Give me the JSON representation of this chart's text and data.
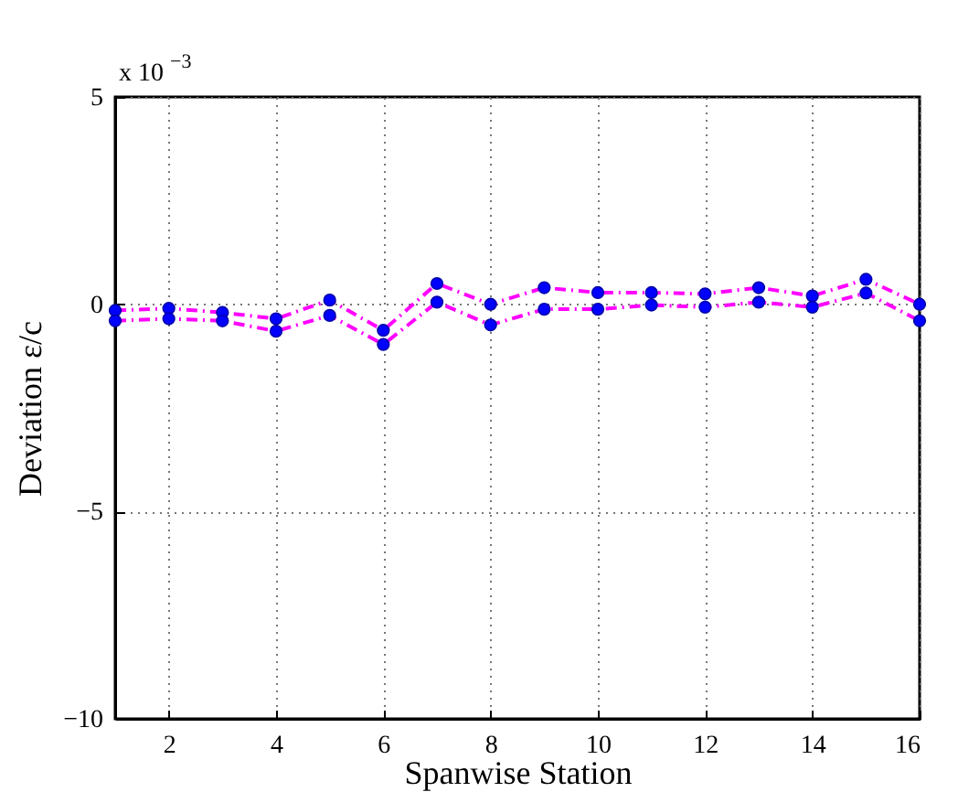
{
  "chart_data": {
    "type": "line",
    "xlabel": "Spanwise Station",
    "ylabel": "Deviation ε/c",
    "annotations": [
      "x 10$^{−3}$"
    ],
    "x": [
      1,
      2,
      3,
      4,
      5,
      6,
      7,
      8,
      9,
      10,
      11,
      12,
      13,
      14,
      15,
      16
    ],
    "series": [
      {
        "color": "#ff00ff",
        "line_style": "dashed",
        "marker": "none",
        "values": [
          -0.15,
          -0.1,
          -0.2,
          -0.35,
          0.1,
          -0.63,
          0.5,
          0.0,
          0.4,
          0.28,
          0.28,
          0.25,
          0.4,
          0.2,
          0.6,
          0.0
        ]
      },
      {
        "color": "#ff00ff",
        "line_style": "dashed",
        "marker": "none",
        "values": [
          -0.4,
          -0.35,
          -0.4,
          -0.65,
          -0.27,
          -0.97,
          0.05,
          -0.5,
          -0.12,
          -0.12,
          -0.02,
          -0.07,
          0.05,
          -0.07,
          0.27,
          -0.4
        ]
      },
      {
        "type": "scatter",
        "color": "#0000ff",
        "marker": "circle",
        "x": [
          1,
          1,
          2,
          2,
          3,
          3,
          4,
          4,
          5,
          5,
          6,
          6,
          7,
          7,
          8,
          8,
          9,
          9,
          10,
          10,
          11,
          11,
          12,
          12,
          13,
          13,
          14,
          14,
          15,
          15,
          16,
          16
        ],
        "values": [
          -0.15,
          -0.4,
          -0.1,
          -0.35,
          -0.2,
          -0.4,
          -0.35,
          -0.65,
          0.1,
          -0.27,
          -0.63,
          -0.97,
          0.5,
          0.05,
          0.0,
          -0.5,
          0.4,
          -0.12,
          0.28,
          -0.12,
          0.28,
          -0.02,
          0.25,
          -0.07,
          0.4,
          0.05,
          0.2,
          -0.07,
          0.6,
          0.27,
          0.0,
          -0.4
        ]
      }
    ],
    "xlim": [
      1,
      16
    ],
    "xticks": [
      2,
      4,
      6,
      8,
      10,
      12,
      14,
      16
    ],
    "ylim": [
      -10,
      5
    ],
    "yticks": [
      {
        "value": -10,
        "label": "−10"
      },
      {
        "value": -5,
        "label": "−5"
      },
      0,
      5
    ],
    "grid": true
  }
}
